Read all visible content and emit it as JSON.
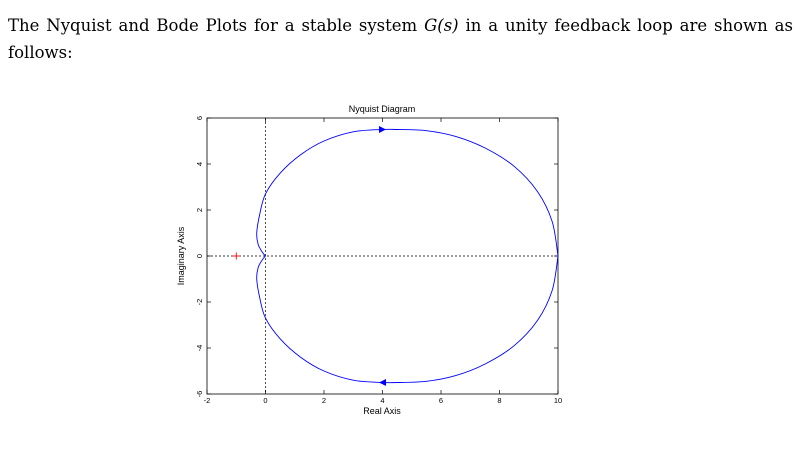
{
  "text": {
    "before_symbol": "The Nyquist and Bode Plots for a stable system ",
    "symbol": "G(s)",
    "after_symbol": " in a unity feedback loop are shown as follows:"
  },
  "chart_data": {
    "type": "line",
    "title": "Nyquist Diagram",
    "xlabel": "Real Axis",
    "ylabel": "Imaginary Axis",
    "xlim": [
      -2,
      10
    ],
    "ylim": [
      -6,
      6
    ],
    "xticks": [
      "-2",
      "0",
      "2",
      "4",
      "6",
      "8",
      "10"
    ],
    "yticks": [
      "-6",
      "-4",
      "-2",
      "0",
      "2",
      "4",
      "6"
    ],
    "critical_point": {
      "x": -1,
      "y": 0,
      "marker": "+",
      "color": "#ff0000"
    },
    "curve_color": "#0000ff",
    "series": [
      {
        "x": [
          10,
          9.8,
          9.3,
          8.5,
          7.5,
          6.5,
          5.5,
          4.5,
          4,
          3,
          2,
          1.2,
          0.5,
          0,
          -0.2,
          -0.3,
          -0.25,
          -0.1,
          0
        ],
        "y": [
          0,
          1.5,
          2.8,
          3.9,
          4.7,
          5.2,
          5.45,
          5.5,
          5.5,
          5.4,
          5.0,
          4.4,
          3.6,
          2.7,
          1.8,
          1.0,
          0.5,
          0.15,
          0
        ]
      },
      {
        "x": [
          10,
          9.8,
          9.3,
          8.5,
          7.5,
          6.5,
          5.5,
          4.5,
          4,
          3,
          2,
          1.2,
          0.5,
          0,
          -0.2,
          -0.3,
          -0.25,
          -0.1,
          0
        ],
        "y": [
          0,
          -1.5,
          -2.8,
          -3.9,
          -4.7,
          -5.2,
          -5.45,
          -5.5,
          -5.5,
          -5.4,
          -5.0,
          -4.4,
          -3.6,
          -2.7,
          -1.8,
          -1.0,
          -0.5,
          -0.15,
          0
        ]
      }
    ],
    "direction_arrows": [
      {
        "x": 4,
        "y": 5.5,
        "direction": "right"
      },
      {
        "x": 4,
        "y": -5.5,
        "direction": "left"
      }
    ]
  }
}
